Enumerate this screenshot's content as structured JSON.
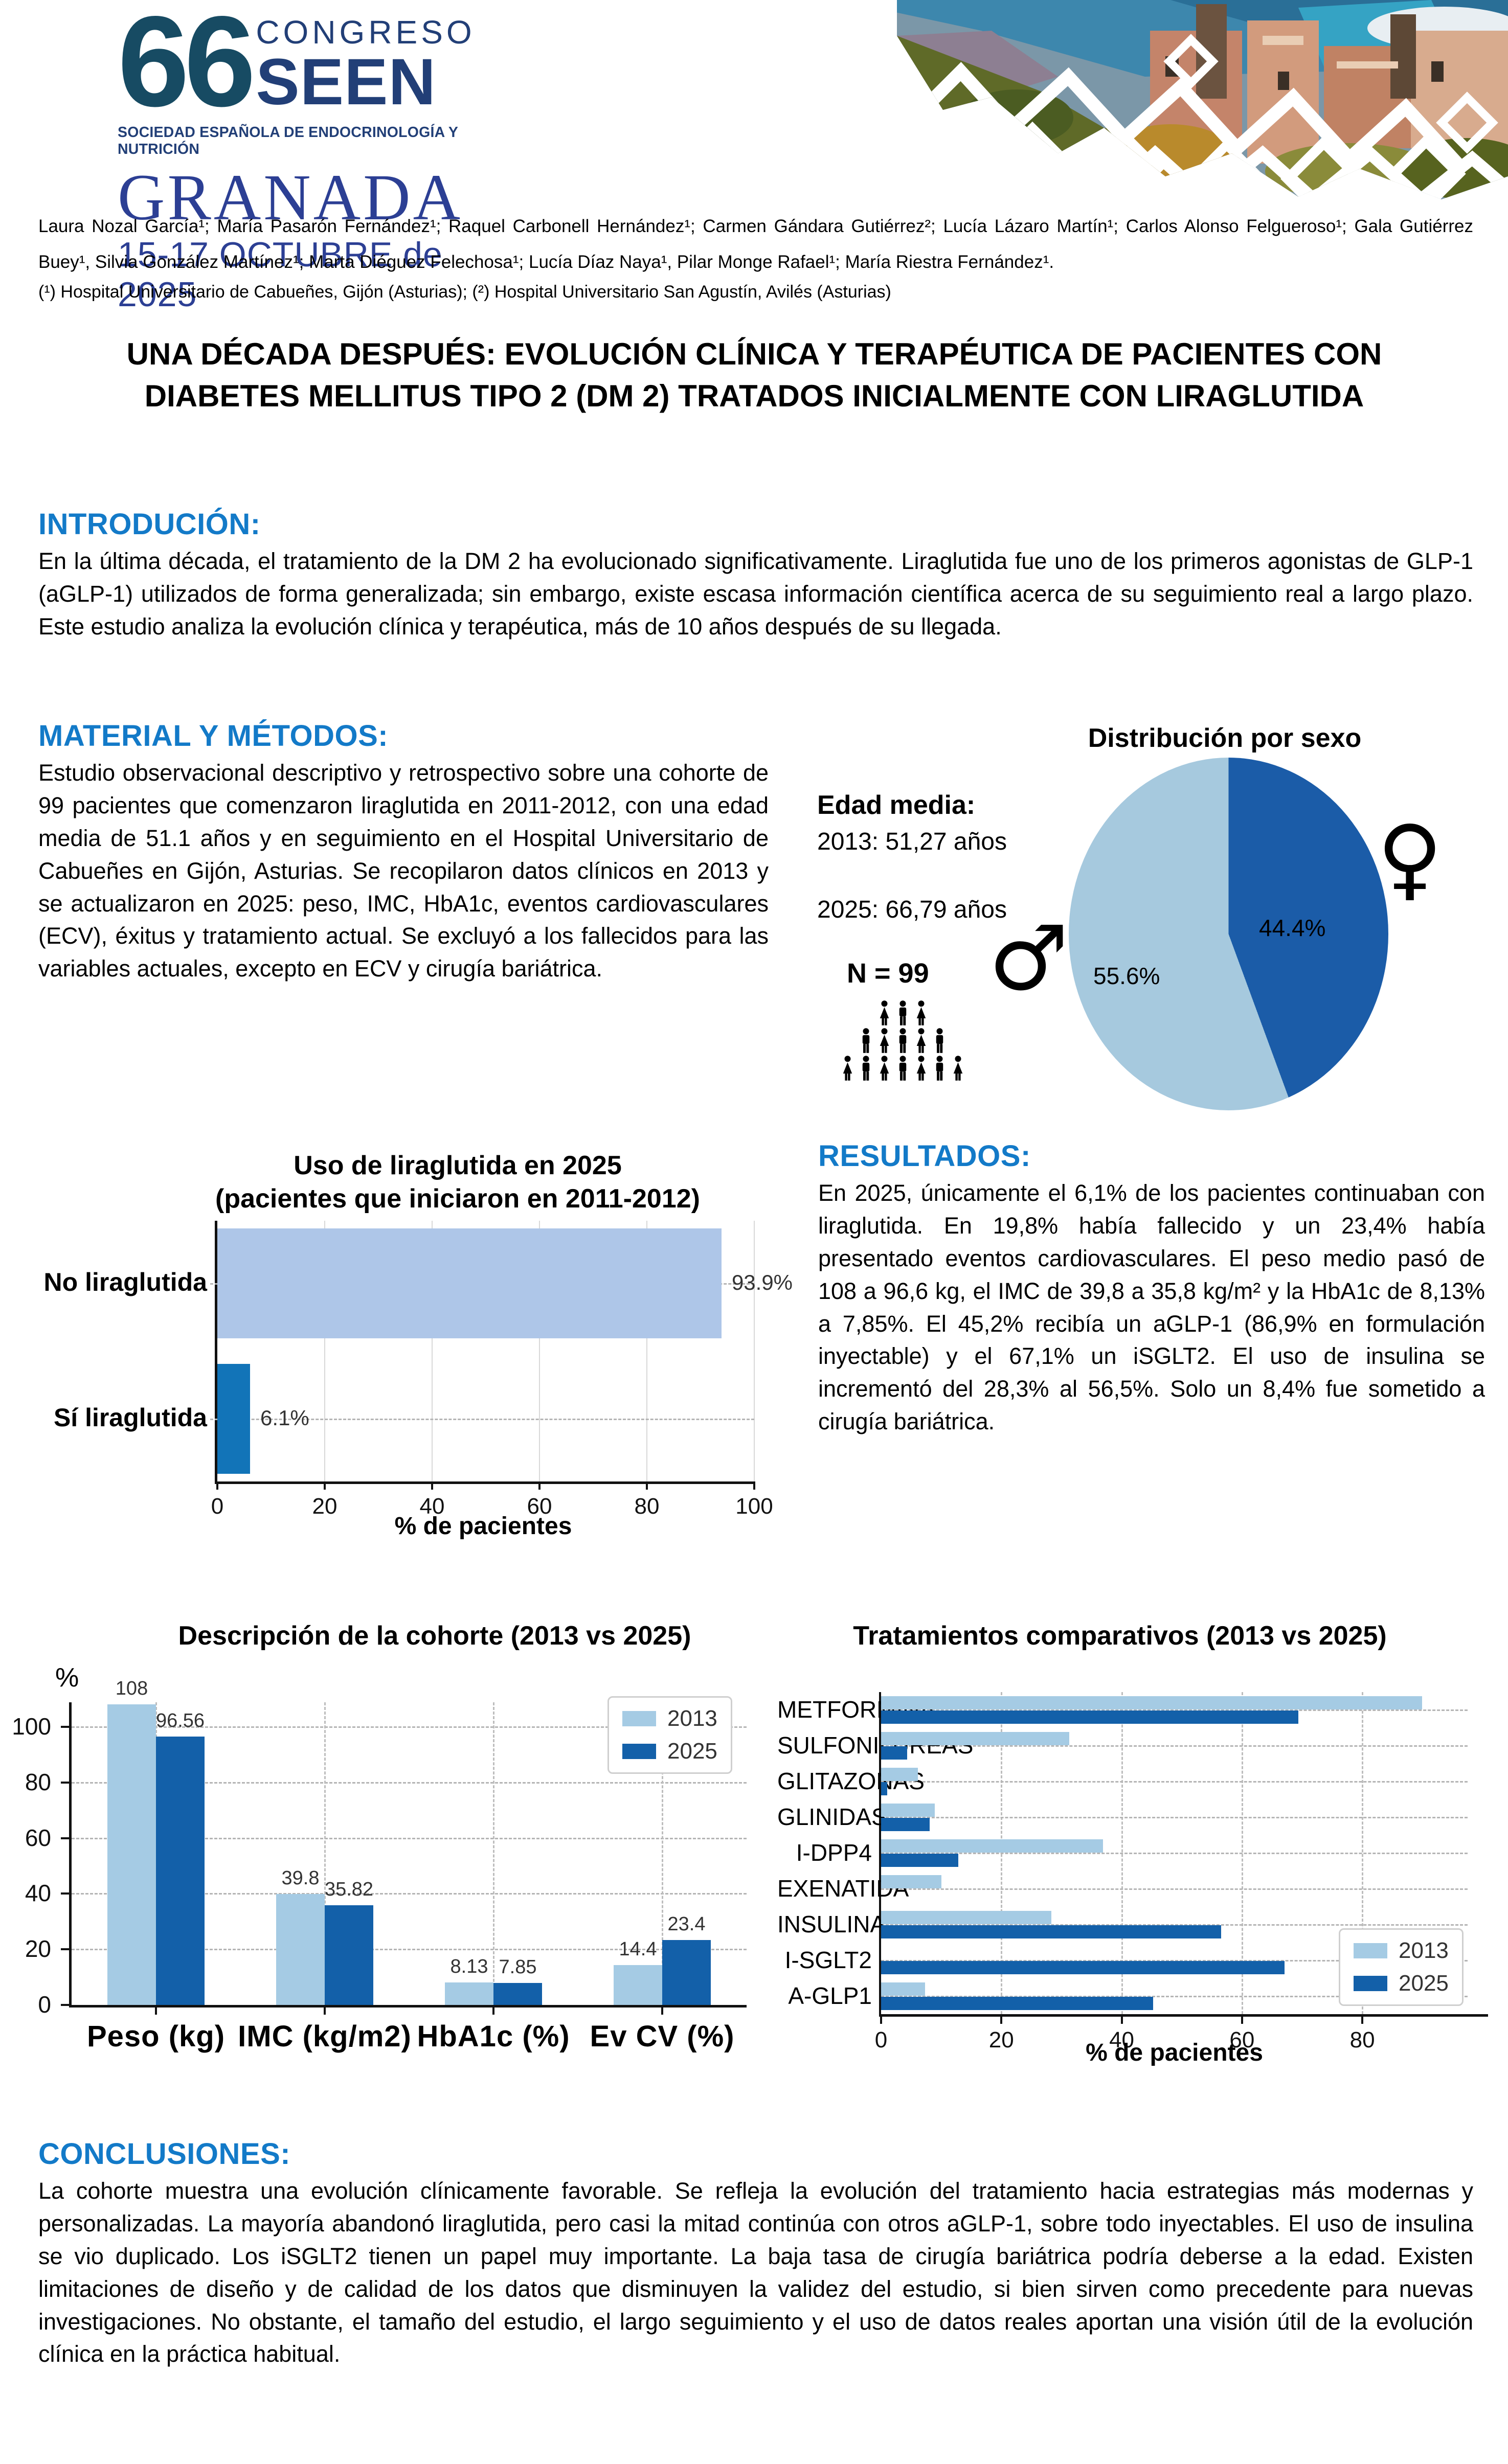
{
  "header": {
    "logo": {
      "number": "66",
      "congreso": "CONGRESO",
      "seen": "SEEN",
      "subtitle": "SOCIEDAD ESPAÑOLA DE ENDOCRINOLOGÍA Y NUTRICIÓN",
      "city": "GRANADA",
      "dates": "15-17 OCTUBRE de 2025"
    },
    "authors": "Laura Nozal García¹; María Pasarón Fernández¹; Raquel Carbonell Hernández¹; Carmen Gándara Gutiérrez²; Lucía Lázaro Martín¹; Carlos Alonso Felgueroso¹; Gala Gutiérrez Buey¹, Silvia González Martínez¹; Marta Diéguez Felechosa¹; Lucía Díaz Naya¹, Pilar Monge Rafael¹; María Riestra Fernández¹.",
    "affiliations": "(¹) Hospital Universitario de Cabueñes, Gijón (Asturias); (²) Hospital Universitario San Agustín, Avilés (Asturias)"
  },
  "title": "UNA DÉCADA DESPUÉS: EVOLUCIÓN CLÍNICA Y TERAPÉUTICA DE PACIENTES CON DIABETES MELLITUS TIPO 2 (DM 2) TRATADOS INICIALMENTE CON LIRAGLUTIDA",
  "sections": {
    "introduccion": {
      "heading": "INTRODUCIÓN:",
      "body": "En la última década, el tratamiento de la DM 2 ha evolucionado significativamente. Liraglutida fue uno de los primeros agonistas de GLP-1 (aGLP-1) utilizados de forma generalizada; sin embargo, existe escasa información científica acerca de su seguimiento real a largo plazo. Este estudio analiza la evolución clínica y terapéutica, más de 10 años después de su llegada."
    },
    "material": {
      "heading": "MATERIAL Y MÉTODOS:",
      "body": "Estudio observacional descriptivo y retrospectivo sobre una cohorte de 99 pacientes que comenzaron liraglutida en 2011-2012, con una edad media de 51.1 años y en seguimiento en el Hospital Universitario de Cabueñes en Gijón, Asturias. Se recopilaron datos clínicos en 2013 y se actualizaron en 2025: peso, IMC, HbA1c, eventos cardiovasculares (ECV), éxitus y tratamiento actual. Se excluyó a los fallecidos para las variables actuales, excepto en ECV y cirugía bariátrica."
    },
    "resultados": {
      "heading": "RESULTADOS:",
      "body": "En 2025, únicamente el 6,1% de los pacientes continuaban con liraglutida. En 19,8% había fallecido y un 23,4% había presentado eventos cardiovasculares. El peso medio pasó de 108 a 96,6 kg, el IMC de 39,8 a 35,8 kg/m² y la HbA1c de 8,13% a 7,85%. El 45,2% recibía un aGLP-1 (86,9% en formulación inyectable) y el 67,1% un iSGLT2. El uso de insulina se incrementó del 28,3% al 56,5%. Solo un 8,4% fue sometido a cirugía bariátrica."
    },
    "conclusiones": {
      "heading": "CONCLUSIONES:",
      "body": "La cohorte muestra una evolución clínicamente favorable. Se refleja la evolución del tratamiento hacia estrategias más modernas y personalizadas. La mayoría abandonó liraglutida, pero casi la mitad continúa con otros aGLP-1, sobre todo inyectables. El uso de insulina se vio duplicado. Los iSGLT2 tienen un papel muy importante. La baja tasa de cirugía bariátrica podría deberse a la edad. Existen limitaciones de diseño y de calidad de los datos que disminuyen la validez del estudio, si bien sirven como precedente para nuevas investigaciones. No obstante, el tamaño del estudio, el largo seguimiento y el uso de datos reales aportan una visión útil de la evolución clínica en la práctica habitual."
    }
  },
  "stats": {
    "edad_media_label": "Edad media:",
    "edad_2013": "2013: 51,27 años",
    "edad_2025": "2025: 66,79 años",
    "n_label": "N = 99",
    "male_symbol": "♂",
    "female_symbol": "♀",
    "pictogram_rows": [
      3,
      5,
      7
    ]
  },
  "colors": {
    "heading_blue": "#137ac8",
    "pie_light": "#a6c9de",
    "pie_dark": "#1b5ca8",
    "lira_light": "#aec6e8",
    "lira_dark": "#1274b8",
    "series_2013": "#a5cbe4",
    "series_2025": "#1360a9"
  },
  "chart_data": [
    {
      "type": "pie",
      "title": "Distribución por sexo",
      "slices": [
        {
          "label": "Mujeres",
          "symbol": "♀",
          "value": 44.4,
          "display": "44.4%",
          "color": "#1b5ca8"
        },
        {
          "label": "Hombres",
          "symbol": "♂",
          "value": 55.6,
          "display": "55.6%",
          "color": "#a6c9de"
        }
      ],
      "legend_position": "none"
    },
    {
      "type": "bar",
      "orientation": "horizontal",
      "title": "Uso de liraglutida en 2025",
      "subtitle": "(pacientes que iniciaron en 2011-2012)",
      "categories": [
        "No liraglutida",
        "Sí liraglutida"
      ],
      "values": [
        93.9,
        6.1
      ],
      "value_labels": [
        "93.9%",
        "6.1%"
      ],
      "bar_colors": [
        "#aec6e8",
        "#1274b8"
      ],
      "xlabel": "% de pacientes",
      "xticks": [
        0,
        20,
        40,
        60,
        80,
        100
      ],
      "xlim": [
        0,
        100
      ],
      "grid": true
    },
    {
      "type": "bar",
      "orientation": "vertical",
      "title": "Descripción de la cohorte (2013 vs 2025)",
      "ylabel": "%",
      "categories": [
        "Peso (kg)",
        "IMC (kg/m2)",
        "HbA1c (%)",
        "Ev CV (%)"
      ],
      "series": [
        {
          "name": "2013",
          "color": "#a5cbe4",
          "values": [
            108,
            39.8,
            8.13,
            14.4
          ],
          "value_labels": [
            "108",
            "39.8",
            "8.13",
            "14.4"
          ]
        },
        {
          "name": "2025",
          "color": "#1360a9",
          "values": [
            96.56,
            35.82,
            7.85,
            23.4
          ],
          "value_labels": [
            "96.56",
            "35.82",
            "7.85",
            "23.4"
          ]
        }
      ],
      "yticks": [
        0,
        20,
        40,
        60,
        80,
        100
      ],
      "ylim": [
        0,
        110
      ],
      "grid": true,
      "legend_position": "top-right"
    },
    {
      "type": "bar",
      "orientation": "horizontal",
      "title": "Tratamientos comparativos (2013 vs 2025)",
      "xlabel": "% de pacientes",
      "categories": [
        "METFORMINA",
        "SULFONILUREAS",
        "GLITAZONAS",
        "GLINIDAS",
        "I-DPP4",
        "EXENATIDA",
        "INSULINA",
        "I-SGLT2",
        "A-GLP1"
      ],
      "series": [
        {
          "name": "2013",
          "color": "#a5cbe4",
          "values": [
            89.9,
            31.3,
            6.1,
            8.9,
            36.9,
            10.0,
            28.3,
            0,
            7.3
          ]
        },
        {
          "name": "2025",
          "color": "#1360a9",
          "values": [
            69.4,
            4.3,
            1.0,
            8.1,
            12.8,
            0,
            56.5,
            67.1,
            45.2
          ]
        }
      ],
      "xticks": [
        0,
        20,
        40,
        60,
        80
      ],
      "xlim": [
        0,
        97.5
      ],
      "grid": true,
      "legend_position": "bottom-right"
    }
  ]
}
